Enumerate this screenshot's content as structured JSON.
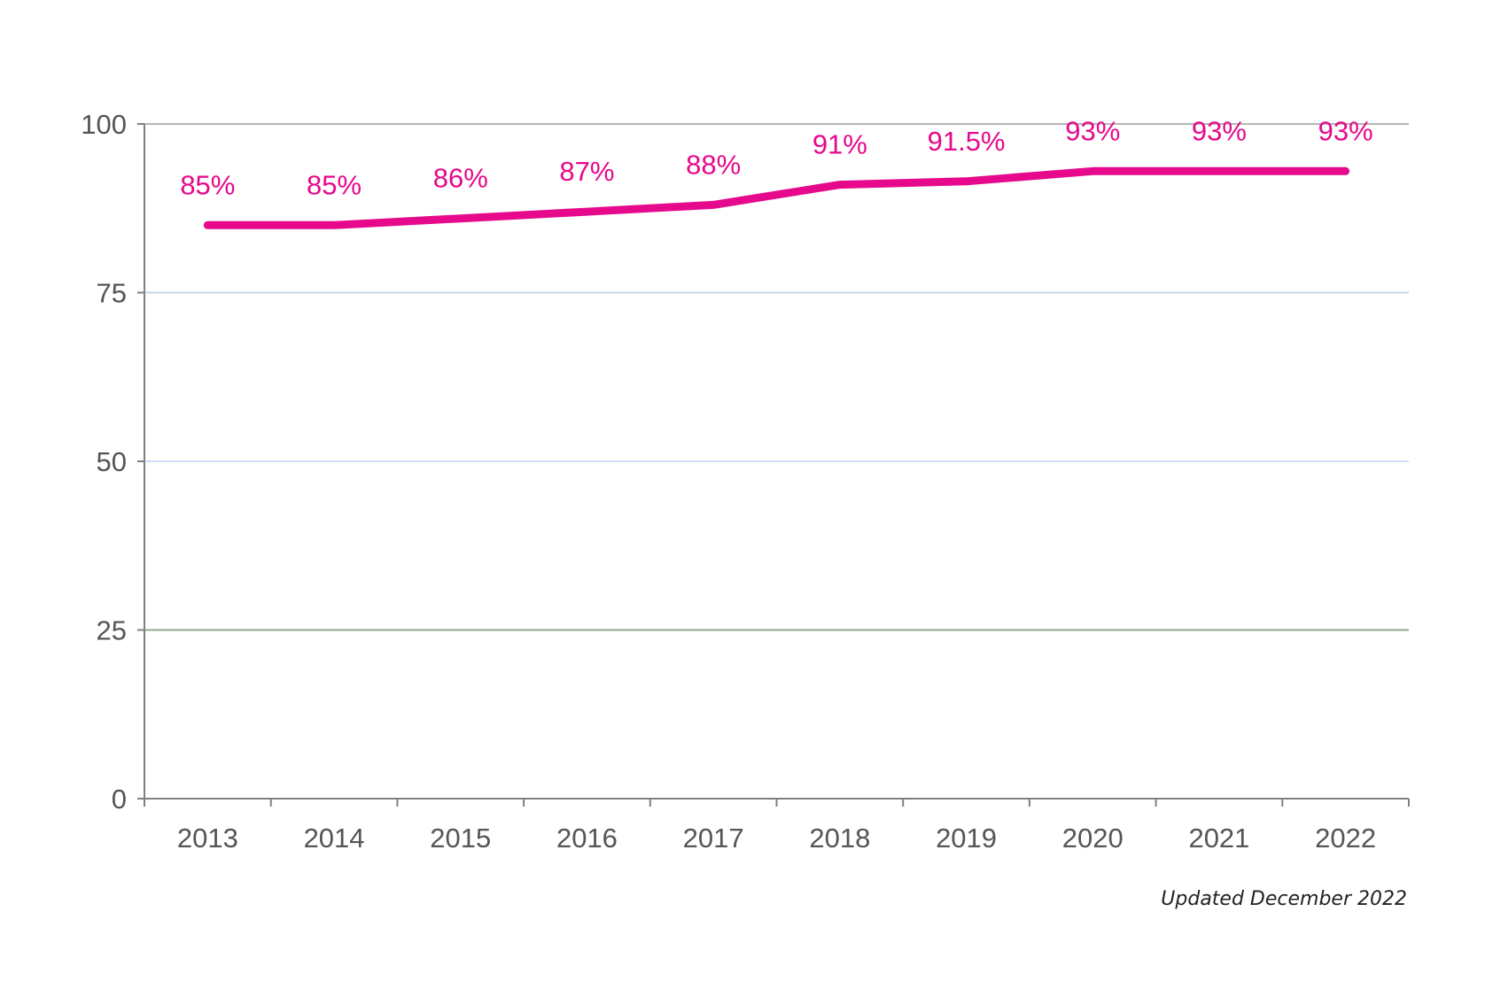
{
  "chart_data": {
    "type": "line",
    "categories": [
      "2013",
      "2014",
      "2015",
      "2016",
      "2017",
      "2018",
      "2019",
      "2020",
      "2021",
      "2022"
    ],
    "series": [
      {
        "values": [
          85,
          85,
          86,
          87,
          88,
          91,
          91.5,
          93,
          93,
          93
        ]
      }
    ],
    "data_labels": [
      "85%",
      "85%",
      "86%",
      "87%",
      "88%",
      "91%",
      "91.5%",
      "93%",
      "93%",
      "93%"
    ],
    "yticks": [
      0,
      25,
      50,
      75,
      100
    ],
    "ylim": [
      0,
      100
    ],
    "grid": true,
    "title": "",
    "xlabel": "",
    "ylabel": "",
    "line_color": "#E6098C",
    "gridline_colors": {
      "25": "#8FA98E",
      "50": "#D2DEF3",
      "75": "#C9D3E8",
      "100": "#B5B5B5"
    }
  },
  "footnote": "Updated December 2022"
}
